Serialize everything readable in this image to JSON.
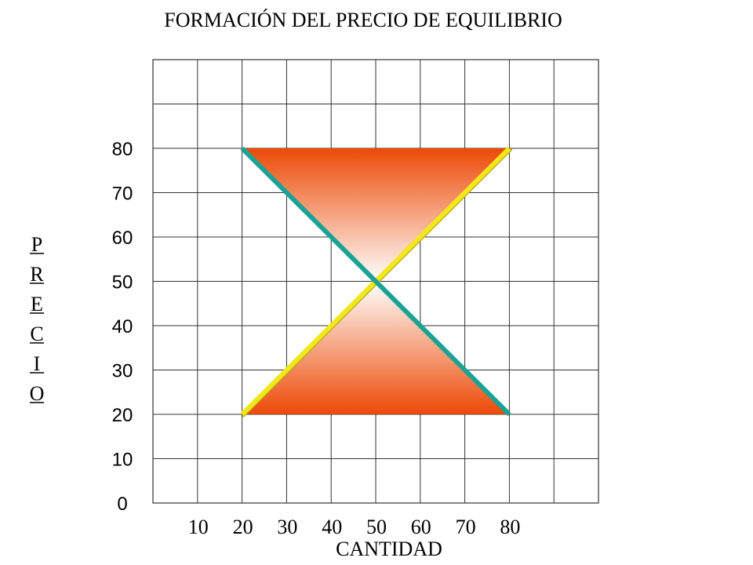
{
  "chart_data": {
    "type": "line",
    "title": "FORMACIÓN DEL PRECIO DE EQUILIBRIO",
    "xlabel": "CANTIDAD",
    "ylabel_letters": [
      "P",
      "R",
      "E",
      "C",
      "I",
      "O"
    ],
    "x_ticks": [
      "10",
      "20",
      "30",
      "40",
      "50",
      "60",
      "70",
      "80"
    ],
    "y_ticks": [
      "0",
      "10",
      "20",
      "30",
      "40",
      "50",
      "60",
      "70",
      "80"
    ],
    "xlim": [
      0,
      100
    ],
    "ylim": [
      0,
      100
    ],
    "grid": true,
    "series": [
      {
        "key": "demand",
        "color": "#1aa394",
        "points": [
          [
            20,
            80
          ],
          [
            80,
            20
          ]
        ]
      },
      {
        "key": "supply",
        "color": "#f2e61c",
        "points": [
          [
            20,
            20
          ],
          [
            80,
            80
          ]
        ]
      }
    ],
    "regions": [
      {
        "key": "upper",
        "points": [
          [
            20,
            80
          ],
          [
            80,
            80
          ],
          [
            50,
            50
          ]
        ],
        "gradient": [
          "#ec4a06",
          "#ffffff"
        ]
      },
      {
        "key": "lower",
        "points": [
          [
            20,
            20
          ],
          [
            80,
            20
          ],
          [
            50,
            50
          ]
        ],
        "gradient": [
          "#ec4a06",
          "#ffffff"
        ]
      }
    ]
  }
}
